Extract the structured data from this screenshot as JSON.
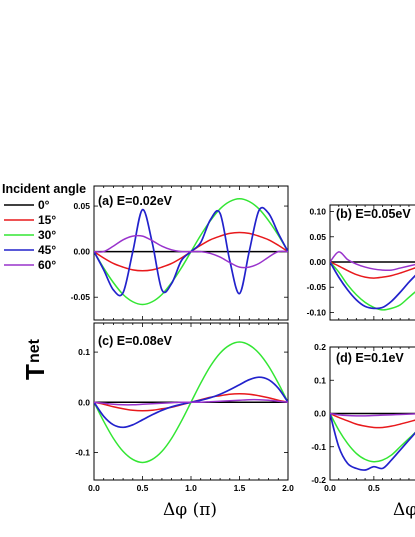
{
  "legend": {
    "title": "Incident angle",
    "entries": [
      {
        "label": "0°",
        "color": "#000000"
      },
      {
        "label": "15°",
        "color": "#e8191c"
      },
      {
        "label": "30°",
        "color": "#33e633"
      },
      {
        "label": "45°",
        "color": "#2222cc"
      },
      {
        "label": "60°",
        "color": "#9933cc"
      }
    ]
  },
  "ylabel_main": "T",
  "ylabel_sub": "net",
  "xlabel": "Δφ (π)",
  "xlabel_right": "Δφ",
  "chart_data": [
    {
      "type": "line",
      "title": "(a) E=0.02eV",
      "x": [
        0,
        0.1,
        0.2,
        0.3,
        0.4,
        0.5,
        0.6,
        0.7,
        0.8,
        0.9,
        1.0,
        1.1,
        1.2,
        1.3,
        1.4,
        1.5,
        1.6,
        1.7,
        1.8,
        1.9,
        2.0
      ],
      "xlim": [
        0,
        2
      ],
      "ylim": [
        -0.075,
        0.072
      ],
      "yticks": [
        -0.05,
        0.0,
        0.05
      ],
      "ytick_labels": [
        "-0.05",
        "0.00",
        "0.05"
      ],
      "series": [
        {
          "name": "0°",
          "values": [
            0,
            0,
            0,
            0,
            0,
            0,
            0,
            0,
            0,
            0,
            0,
            0,
            0,
            0,
            0,
            0,
            0,
            0,
            0,
            0,
            0
          ]
        },
        {
          "name": "15°",
          "values": [
            0,
            -0.007,
            -0.013,
            -0.017,
            -0.02,
            -0.021,
            -0.02,
            -0.017,
            -0.013,
            -0.007,
            0,
            0.007,
            0.013,
            0.017,
            0.02,
            0.021,
            0.02,
            0.017,
            0.013,
            0.007,
            0
          ]
        },
        {
          "name": "30°",
          "values": [
            0,
            -0.018,
            -0.034,
            -0.047,
            -0.055,
            -0.058,
            -0.055,
            -0.047,
            -0.034,
            -0.018,
            0,
            0.018,
            0.034,
            0.047,
            0.055,
            0.058,
            0.055,
            0.047,
            0.034,
            0.018,
            0
          ]
        },
        {
          "name": "45°",
          "values": [
            0,
            -0.02,
            -0.042,
            -0.045,
            0,
            0.046,
            0.01,
            -0.042,
            -0.035,
            -0.01,
            0,
            0.01,
            0.035,
            0.042,
            -0.01,
            -0.046,
            0,
            0.045,
            0.042,
            0.02,
            0
          ]
        },
        {
          "name": "60°",
          "values": [
            0,
            0,
            0.006,
            0.013,
            0.017,
            0.017,
            0.012,
            0.006,
            0.002,
            0,
            0,
            0,
            -0.002,
            -0.006,
            -0.012,
            -0.017,
            -0.017,
            -0.013,
            -0.006,
            0,
            0
          ]
        }
      ]
    },
    {
      "type": "line",
      "title": "(b) E=0.05eV",
      "x": [
        0,
        0.1,
        0.2,
        0.3,
        0.4,
        0.5,
        0.6,
        0.7,
        0.8,
        0.9,
        1.0
      ],
      "xlim": [
        0,
        1.14
      ],
      "ylim": [
        -0.115,
        0.113
      ],
      "yticks": [
        -0.1,
        -0.05,
        0.0,
        0.05,
        0.1
      ],
      "ytick_labels": [
        "-0.10",
        "-0.05",
        "0.00",
        "0.05",
        "0.10"
      ],
      "series": [
        {
          "name": "0°",
          "values": [
            0,
            0,
            0,
            0,
            0,
            0,
            0,
            0,
            0,
            0,
            0
          ]
        },
        {
          "name": "15°",
          "values": [
            0,
            -0.008,
            -0.017,
            -0.025,
            -0.03,
            -0.032,
            -0.03,
            -0.027,
            -0.022,
            -0.016,
            -0.01
          ]
        },
        {
          "name": "30°",
          "values": [
            0,
            -0.02,
            -0.045,
            -0.065,
            -0.08,
            -0.09,
            -0.095,
            -0.092,
            -0.085,
            -0.07,
            -0.055
          ]
        },
        {
          "name": "45°",
          "values": [
            0,
            -0.03,
            -0.055,
            -0.075,
            -0.088,
            -0.092,
            -0.09,
            -0.078,
            -0.06,
            -0.04,
            -0.022
          ]
        },
        {
          "name": "60°",
          "values": [
            0,
            0.02,
            0.005,
            -0.004,
            -0.01,
            -0.014,
            -0.016,
            -0.016,
            -0.012,
            -0.008,
            -0.004
          ]
        }
      ]
    },
    {
      "type": "line",
      "title": "(c) E=0.08eV",
      "x": [
        0,
        0.1,
        0.2,
        0.3,
        0.4,
        0.5,
        0.6,
        0.7,
        0.8,
        0.9,
        1.0,
        1.1,
        1.2,
        1.3,
        1.4,
        1.5,
        1.6,
        1.7,
        1.8,
        1.9,
        2.0
      ],
      "xlim": [
        0,
        2
      ],
      "ylim": [
        -0.155,
        0.158
      ],
      "xticks": [
        0,
        0.5,
        1.0,
        1.5,
        2.0
      ],
      "xtick_labels": [
        "0.0",
        "0.5",
        "1.0",
        "1.5",
        "2.0"
      ],
      "yticks": [
        -0.1,
        0.0,
        0.1
      ],
      "ytick_labels": [
        "-0.1",
        "0.0",
        "0.1"
      ],
      "series": [
        {
          "name": "0°",
          "values": [
            0,
            0,
            0,
            0,
            0,
            0,
            0,
            0,
            0,
            0,
            0,
            0,
            0,
            0,
            0,
            0,
            0,
            0,
            0,
            0,
            0
          ]
        },
        {
          "name": "15°",
          "values": [
            0,
            -0.004,
            -0.009,
            -0.013,
            -0.016,
            -0.017,
            -0.016,
            -0.013,
            -0.01,
            -0.005,
            0,
            0.005,
            0.01,
            0.013,
            0.016,
            0.017,
            0.016,
            0.013,
            0.009,
            0.004,
            0
          ]
        },
        {
          "name": "30°",
          "values": [
            0,
            -0.038,
            -0.072,
            -0.098,
            -0.114,
            -0.12,
            -0.114,
            -0.098,
            -0.072,
            -0.038,
            0,
            0.038,
            0.072,
            0.098,
            0.114,
            0.12,
            0.114,
            0.098,
            0.072,
            0.038,
            0
          ]
        },
        {
          "name": "45°",
          "values": [
            0,
            -0.028,
            -0.045,
            -0.05,
            -0.045,
            -0.035,
            -0.025,
            -0.016,
            -0.009,
            -0.004,
            0,
            0.004,
            0.009,
            0.016,
            0.025,
            0.035,
            0.045,
            0.05,
            0.045,
            0.028,
            0
          ]
        },
        {
          "name": "60°",
          "values": [
            0,
            -0.002,
            -0.004,
            -0.005,
            -0.005,
            -0.004,
            -0.003,
            -0.002,
            -0.001,
            0,
            0,
            0,
            0.001,
            0.002,
            0.003,
            0.004,
            0.005,
            0.005,
            0.004,
            0.002,
            0
          ]
        }
      ]
    },
    {
      "type": "line",
      "title": "(d) E=0.1eV",
      "x": [
        0,
        0.1,
        0.2,
        0.3,
        0.4,
        0.5,
        0.6,
        0.7,
        0.8,
        0.9,
        1.0
      ],
      "xlim": [
        0,
        1.14
      ],
      "ylim": [
        -0.2,
        0.2
      ],
      "xticks": [
        0,
        0.5
      ],
      "xtick_labels": [
        "0.0",
        "0.5"
      ],
      "yticks": [
        -0.2,
        -0.1,
        0.0,
        0.1,
        0.2
      ],
      "ytick_labels": [
        "-0.2",
        "-0.1",
        "0.0",
        "0.1",
        "0.2"
      ],
      "series": [
        {
          "name": "0°",
          "values": [
            0,
            0,
            0,
            0,
            0,
            0,
            0,
            0,
            0,
            0,
            0
          ]
        },
        {
          "name": "15°",
          "values": [
            0,
            -0.012,
            -0.022,
            -0.032,
            -0.038,
            -0.042,
            -0.042,
            -0.038,
            -0.032,
            -0.025,
            -0.018
          ]
        },
        {
          "name": "30°",
          "values": [
            0,
            -0.05,
            -0.09,
            -0.12,
            -0.138,
            -0.145,
            -0.14,
            -0.125,
            -0.1,
            -0.075,
            -0.05
          ]
        },
        {
          "name": "45°",
          "values": [
            0,
            -0.1,
            -0.15,
            -0.165,
            -0.17,
            -0.16,
            -0.165,
            -0.14,
            -0.11,
            -0.08,
            -0.05
          ]
        },
        {
          "name": "60°",
          "values": [
            0,
            -0.004,
            -0.006,
            -0.007,
            -0.007,
            -0.006,
            -0.005,
            -0.004,
            -0.003,
            -0.002,
            -0.001
          ]
        }
      ]
    }
  ]
}
